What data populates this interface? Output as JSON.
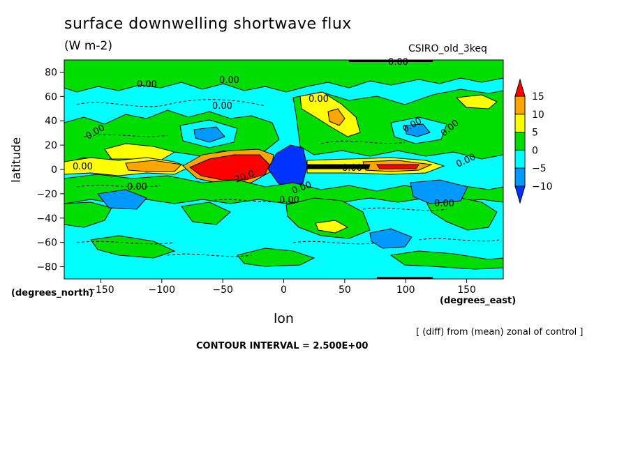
{
  "chart_data": {
    "type": "heatmap",
    "title": "surface downwelling shortwave flux",
    "units": "(W m-2)",
    "model": "CSIRO_old_3keq",
    "xlabel": "lon",
    "ylabel": "latitude",
    "x_unit_label": "(degrees_east)",
    "y_unit_label": "(degrees_north)",
    "xlim": [
      -180,
      180
    ],
    "ylim": [
      -90,
      90
    ],
    "x_ticks": [
      -150,
      -100,
      -50,
      0,
      50,
      100,
      150
    ],
    "y_ticks": [
      80,
      60,
      40,
      20,
      0,
      -20,
      -40,
      -60,
      -80
    ],
    "colorbar": {
      "levels": [
        15,
        10,
        5,
        0,
        -5,
        -10
      ],
      "colors": [
        "#ff0000",
        "#ffa500",
        "#ffff00",
        "#00dd00",
        "#00ffff",
        "#0099ff",
        "#0033ff"
      ]
    },
    "contour_labels": [
      "0.00",
      "0.00",
      "0.00",
      "0.00",
      "0.00",
      "0.00",
      "0.00",
      "0.00",
      "20.0",
      "0.00",
      "0.00",
      "0.00",
      "0.00",
      "0.00",
      "0.00",
      "0.00"
    ],
    "note": "[ (diff) from (mean) zonal of control ]",
    "contour_interval": "CONTOUR INTERVAL = 2.500E+00"
  }
}
